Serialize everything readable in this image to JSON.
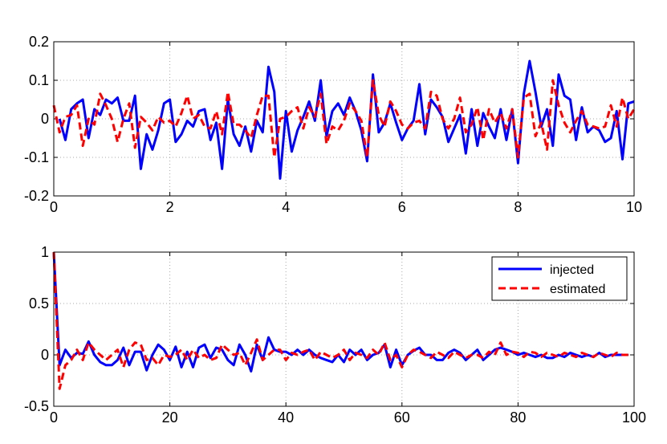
{
  "chart_data": [
    {
      "type": "line",
      "title": "",
      "xlabel": "",
      "ylabel": "",
      "xlim": [
        0,
        10
      ],
      "ylim": [
        -0.2,
        0.2
      ],
      "xticks": [
        "0",
        "2",
        "4",
        "6",
        "8",
        "10"
      ],
      "yticks": [
        "0.2",
        "0.1",
        "0",
        "-0.1",
        "-0.2"
      ],
      "grid": true,
      "series": [
        {
          "color": "#0000ff",
          "style": "solid",
          "x": [
            0.1,
            0.2,
            0.3,
            0.4,
            0.5,
            0.6,
            0.7,
            0.8,
            0.9,
            1.0,
            1.1,
            1.2,
            1.3,
            1.4,
            1.5,
            1.6,
            1.7,
            1.8,
            1.9,
            2.0,
            2.1,
            2.2,
            2.3,
            2.4,
            2.5,
            2.6,
            2.7,
            2.8,
            2.9,
            3.0,
            3.1,
            3.2,
            3.3,
            3.4,
            3.5,
            3.6,
            3.7,
            3.8,
            3.9,
            4.0,
            4.1,
            4.2,
            4.3,
            4.4,
            4.5,
            4.6,
            4.7,
            4.8,
            4.9,
            5.0,
            5.1,
            5.2,
            5.3,
            5.4,
            5.5,
            5.6,
            5.7,
            5.8,
            5.9,
            6.0,
            6.1,
            6.2,
            6.3,
            6.4,
            6.5,
            6.6,
            6.7,
            6.8,
            6.9,
            7.0,
            7.1,
            7.2,
            7.3,
            7.4,
            7.5,
            7.6,
            7.7,
            7.8,
            7.9,
            8.0,
            8.1,
            8.2,
            8.3,
            8.4,
            8.5,
            8.6,
            8.7,
            8.8,
            8.9,
            9.0,
            9.1,
            9.2,
            9.3,
            9.4,
            9.5,
            9.6,
            9.7,
            9.8,
            9.9,
            10.0
          ],
          "y": [
            0.0,
            -0.055,
            0.025,
            0.04,
            0.05,
            -0.05,
            0.025,
            0.01,
            0.05,
            0.04,
            0.055,
            -0.005,
            -0.005,
            0.06,
            -0.13,
            -0.04,
            -0.08,
            -0.03,
            0.04,
            0.05,
            -0.06,
            -0.04,
            -0.005,
            -0.02,
            0.02,
            0.025,
            -0.055,
            -0.01,
            -0.13,
            0.05,
            -0.04,
            -0.07,
            -0.02,
            -0.085,
            -0.005,
            -0.035,
            0.135,
            0.07,
            -0.155,
            0.02,
            -0.085,
            -0.03,
            0.005,
            0.045,
            -0.005,
            0.1,
            -0.045,
            0.02,
            0.04,
            0.01,
            0.055,
            0.02,
            -0.03,
            -0.11,
            0.115,
            -0.035,
            -0.01,
            0.04,
            -0.01,
            -0.055,
            -0.025,
            -0.005,
            0.09,
            -0.04,
            0.05,
            0.03,
            0.005,
            -0.06,
            -0.025,
            0.01,
            -0.09,
            0.025,
            -0.07,
            0.015,
            -0.02,
            -0.05,
            0.025,
            -0.055,
            0.025,
            -0.115,
            0.065,
            0.15,
            0.07,
            -0.02,
            0.025,
            -0.07,
            0.115,
            0.06,
            0.05,
            -0.055,
            0.03,
            -0.035,
            -0.02,
            -0.03,
            -0.06,
            -0.05,
            0.02,
            -0.105,
            0.04,
            0.045
          ]
        },
        {
          "color": "#ff0000",
          "style": "dashed",
          "x": [
            0.0,
            0.1,
            0.2,
            0.3,
            0.4,
            0.5,
            0.6,
            0.7,
            0.8,
            0.9,
            1.0,
            1.1,
            1.2,
            1.3,
            1.4,
            1.5,
            1.6,
            1.7,
            1.8,
            1.9,
            2.0,
            2.1,
            2.2,
            2.3,
            2.4,
            2.5,
            2.6,
            2.7,
            2.8,
            2.9,
            3.0,
            3.1,
            3.2,
            3.3,
            3.4,
            3.5,
            3.6,
            3.7,
            3.8,
            3.9,
            4.0,
            4.1,
            4.2,
            4.3,
            4.4,
            4.5,
            4.6,
            4.7,
            4.8,
            4.9,
            5.0,
            5.1,
            5.2,
            5.3,
            5.4,
            5.5,
            5.6,
            5.7,
            5.8,
            5.9,
            6.0,
            6.1,
            6.2,
            6.3,
            6.4,
            6.5,
            6.6,
            6.7,
            6.8,
            6.9,
            7.0,
            7.1,
            7.2,
            7.3,
            7.4,
            7.5,
            7.6,
            7.7,
            7.8,
            7.9,
            8.0,
            8.1,
            8.2,
            8.3,
            8.4,
            8.5,
            8.6,
            8.7,
            8.8,
            8.9,
            9.0,
            9.1,
            9.2,
            9.3,
            9.4,
            9.5,
            9.6,
            9.7,
            9.8,
            9.9,
            10.0
          ],
          "y": [
            0.035,
            -0.035,
            0.005,
            0.01,
            0.035,
            -0.07,
            0.0,
            -0.015,
            0.065,
            0.035,
            0.0,
            -0.06,
            0.0,
            0.04,
            -0.075,
            0.005,
            -0.01,
            -0.03,
            0.005,
            -0.01,
            -0.005,
            -0.02,
            0.015,
            0.06,
            0.0,
            0.01,
            -0.02,
            -0.025,
            0.02,
            -0.04,
            0.07,
            -0.015,
            -0.015,
            -0.03,
            -0.05,
            0.01,
            0.06,
            0.06,
            -0.1,
            0.0,
            0.005,
            0.02,
            0.03,
            -0.025,
            0.03,
            0.005,
            0.065,
            -0.065,
            -0.02,
            -0.03,
            -0.005,
            0.04,
            0.02,
            -0.005,
            -0.1,
            0.1,
            0.01,
            -0.02,
            0.045,
            0.02,
            -0.015,
            -0.025,
            -0.01,
            -0.005,
            -0.025,
            0.07,
            0.06,
            0.0,
            -0.025,
            0.0,
            0.055,
            -0.035,
            -0.015,
            0.03,
            -0.055,
            0.025,
            -0.01,
            0.015,
            -0.025,
            0.025,
            -0.1,
            0.055,
            0.065,
            -0.045,
            -0.01,
            -0.08,
            0.1,
            0.035,
            -0.01,
            -0.035,
            -0.005,
            0.02,
            -0.015,
            -0.02,
            -0.025,
            -0.02,
            0.035,
            -0.02,
            0.055,
            0.0,
            0.025
          ]
        }
      ]
    },
    {
      "type": "line",
      "title": "",
      "xlabel": "",
      "ylabel": "",
      "xlim": [
        0,
        100
      ],
      "ylim": [
        -0.5,
        1
      ],
      "xticks": [
        "0",
        "20",
        "40",
        "60",
        "80",
        "100"
      ],
      "yticks": [
        "1",
        "0.5",
        "0",
        "-0.5"
      ],
      "grid": true,
      "legend_position": "top-right",
      "series": [
        {
          "name": "injected",
          "color": "#0000ff",
          "style": "solid",
          "x": [
            0,
            1,
            2,
            3,
            4,
            5,
            6,
            7,
            8,
            9,
            10,
            11,
            12,
            13,
            14,
            15,
            16,
            17,
            18,
            19,
            20,
            21,
            22,
            23,
            24,
            25,
            26,
            27,
            28,
            29,
            30,
            31,
            32,
            33,
            34,
            35,
            36,
            37,
            38,
            39,
            40,
            41,
            42,
            43,
            44,
            45,
            46,
            47,
            48,
            49,
            50,
            51,
            52,
            53,
            54,
            55,
            56,
            57,
            58,
            59,
            60,
            61,
            62,
            63,
            64,
            65,
            66,
            67,
            68,
            69,
            70,
            71,
            72,
            73,
            74,
            75,
            76,
            77,
            78,
            79,
            80,
            81,
            82,
            83,
            84,
            85,
            86,
            87,
            88,
            89,
            90,
            91,
            92,
            93,
            94,
            95,
            96,
            97,
            98,
            99
          ],
          "y": [
            1.0,
            -0.1,
            0.05,
            -0.03,
            0.02,
            0.01,
            0.13,
            0.0,
            -0.07,
            -0.1,
            -0.1,
            -0.05,
            0.07,
            -0.1,
            0.03,
            0.03,
            -0.15,
            0.0,
            0.1,
            0.05,
            -0.05,
            0.08,
            -0.12,
            0.03,
            -0.12,
            0.07,
            0.1,
            -0.03,
            0.07,
            0.05,
            -0.05,
            -0.1,
            0.1,
            0.0,
            -0.16,
            0.1,
            -0.05,
            0.17,
            0.05,
            0.03,
            0.03,
            0.0,
            0.05,
            0.0,
            0.05,
            0.0,
            -0.03,
            -0.05,
            -0.07,
            0.0,
            -0.07,
            0.05,
            0.0,
            0.05,
            -0.05,
            0.0,
            0.02,
            0.1,
            -0.12,
            0.05,
            -0.1,
            0.0,
            0.04,
            0.07,
            0.0,
            0.0,
            -0.05,
            -0.05,
            0.02,
            0.05,
            0.02,
            -0.05,
            0.0,
            0.05,
            -0.05,
            0.0,
            0.05,
            0.07,
            0.05,
            0.03,
            0.0,
            0.02,
            0.0,
            -0.02,
            0.0,
            -0.03,
            -0.03,
            0.0,
            -0.02,
            0.02,
            0.0,
            -0.02,
            0.0,
            -0.02,
            0.02,
            -0.02,
            0.0,
            0.0,
            0.0,
            0.0
          ]
        },
        {
          "name": "estimated",
          "color": "#ff0000",
          "style": "dashed",
          "x": [
            0,
            1,
            2,
            3,
            4,
            5,
            6,
            7,
            8,
            9,
            10,
            11,
            12,
            13,
            14,
            15,
            16,
            17,
            18,
            19,
            20,
            21,
            22,
            23,
            24,
            25,
            26,
            27,
            28,
            29,
            30,
            31,
            32,
            33,
            34,
            35,
            36,
            37,
            38,
            39,
            40,
            41,
            42,
            43,
            44,
            45,
            46,
            47,
            48,
            49,
            50,
            51,
            52,
            53,
            54,
            55,
            56,
            57,
            58,
            59,
            60,
            61,
            62,
            63,
            64,
            65,
            66,
            67,
            68,
            69,
            70,
            71,
            72,
            73,
            74,
            75,
            76,
            77,
            78,
            79,
            80,
            81,
            82,
            83,
            84,
            85,
            86,
            87,
            88,
            89,
            90,
            91,
            92,
            93,
            94,
            95,
            96,
            97,
            98,
            99
          ],
          "y": [
            1.0,
            -0.33,
            -0.1,
            -0.05,
            0.05,
            -0.05,
            0.12,
            0.05,
            0.0,
            -0.05,
            0.0,
            0.05,
            -0.12,
            0.05,
            0.12,
            0.1,
            -0.05,
            -0.03,
            -0.1,
            0.0,
            -0.02,
            0.0,
            0.05,
            -0.05,
            0.05,
            -0.03,
            0.0,
            -0.05,
            -0.03,
            0.1,
            0.05,
            0.0,
            0.02,
            -0.1,
            0.02,
            0.15,
            -0.05,
            0.0,
            0.05,
            0.05,
            -0.05,
            0.02,
            0.0,
            0.03,
            0.05,
            -0.05,
            0.03,
            0.0,
            -0.03,
            0.0,
            0.05,
            -0.05,
            0.02,
            0.0,
            -0.03,
            0.05,
            0.0,
            0.12,
            -0.05,
            0.0,
            -0.12,
            0.0,
            0.05,
            0.03,
            0.0,
            -0.03,
            0.03,
            0.0,
            -0.03,
            0.03,
            0.0,
            -0.03,
            0.0,
            0.0,
            -0.03,
            0.03,
            0.0,
            0.12,
            0.0,
            0.03,
            0.02,
            -0.02,
            0.03,
            0.02,
            -0.02,
            0.02,
            0.0,
            -0.02,
            0.02,
            0.0,
            -0.02,
            0.02,
            0.0,
            -0.02,
            0.02,
            0.0,
            -0.02,
            0.02,
            0.0,
            0.0
          ]
        }
      ]
    }
  ]
}
